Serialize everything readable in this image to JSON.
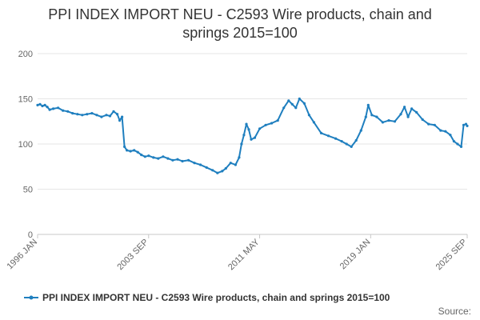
{
  "chart_data": {
    "type": "line",
    "title_lines": [
      "PPI INDEX IMPORT NEU - C2593 Wire products, chain and",
      "springs 2015=100"
    ],
    "xlabel": "",
    "ylabel": "",
    "x_range": [
      "1996-01",
      "2025-09"
    ],
    "x_tick_labels": [
      "1996 JAN",
      "2003 SEP",
      "2011 MAY",
      "2019 JAN",
      "2025 SEP"
    ],
    "ylim": [
      0,
      200
    ],
    "y_ticks": [
      0,
      50,
      100,
      150,
      200
    ],
    "grid": true,
    "legend_position": "bottom",
    "source_label": "Source:",
    "series": [
      {
        "name": "PPI INDEX IMPORT NEU - C2593 Wire products, chain and springs 2015=100",
        "color": "#1f7fbf",
        "points": [
          [
            "1996-01",
            143
          ],
          [
            "1996-03",
            144
          ],
          [
            "1996-05",
            142
          ],
          [
            "1996-07",
            143
          ],
          [
            "1996-09",
            141
          ],
          [
            "1996-11",
            138
          ],
          [
            "1997-02",
            139
          ],
          [
            "1997-06",
            140
          ],
          [
            "1997-10",
            137
          ],
          [
            "1998-02",
            136
          ],
          [
            "1998-06",
            134
          ],
          [
            "1998-10",
            133
          ],
          [
            "1999-02",
            132
          ],
          [
            "1999-06",
            133
          ],
          [
            "1999-10",
            134
          ],
          [
            "2000-02",
            132
          ],
          [
            "2000-06",
            130
          ],
          [
            "2000-10",
            132
          ],
          [
            "2001-01",
            131
          ],
          [
            "2001-04",
            136
          ],
          [
            "2001-07",
            133
          ],
          [
            "2001-09",
            126
          ],
          [
            "2001-11",
            130
          ],
          [
            "2002-01",
            97
          ],
          [
            "2002-03",
            93
          ],
          [
            "2002-06",
            92
          ],
          [
            "2002-09",
            93
          ],
          [
            "2002-12",
            91
          ],
          [
            "2003-03",
            88
          ],
          [
            "2003-06",
            86
          ],
          [
            "2003-09",
            87
          ],
          [
            "2004-01",
            85
          ],
          [
            "2004-05",
            84
          ],
          [
            "2004-09",
            86
          ],
          [
            "2005-01",
            84
          ],
          [
            "2005-05",
            82
          ],
          [
            "2005-09",
            83
          ],
          [
            "2006-01",
            81
          ],
          [
            "2006-06",
            82
          ],
          [
            "2006-11",
            79
          ],
          [
            "2007-04",
            77
          ],
          [
            "2007-09",
            74
          ],
          [
            "2008-02",
            71
          ],
          [
            "2008-06",
            68
          ],
          [
            "2008-10",
            70
          ],
          [
            "2009-01",
            73
          ],
          [
            "2009-05",
            79
          ],
          [
            "2009-09",
            77
          ],
          [
            "2009-12",
            85
          ],
          [
            "2010-02",
            100
          ],
          [
            "2010-04",
            110
          ],
          [
            "2010-06",
            122
          ],
          [
            "2010-08",
            116
          ],
          [
            "2010-10",
            105
          ],
          [
            "2011-01",
            107
          ],
          [
            "2011-05",
            117
          ],
          [
            "2011-10",
            121
          ],
          [
            "2012-03",
            123
          ],
          [
            "2012-08",
            126
          ],
          [
            "2013-01",
            140
          ],
          [
            "2013-05",
            148
          ],
          [
            "2013-08",
            144
          ],
          [
            "2013-11",
            140
          ],
          [
            "2014-02",
            150
          ],
          [
            "2014-06",
            145
          ],
          [
            "2014-10",
            132
          ],
          [
            "2015-02",
            124
          ],
          [
            "2015-08",
            112
          ],
          [
            "2016-02",
            109
          ],
          [
            "2016-08",
            106
          ],
          [
            "2017-01",
            103
          ],
          [
            "2017-05",
            100
          ],
          [
            "2017-09",
            97
          ],
          [
            "2018-01",
            104
          ],
          [
            "2018-05",
            115
          ],
          [
            "2018-09",
            130
          ],
          [
            "2018-11",
            143
          ],
          [
            "2019-02",
            132
          ],
          [
            "2019-06",
            130
          ],
          [
            "2019-11",
            124
          ],
          [
            "2020-04",
            126
          ],
          [
            "2020-09",
            125
          ],
          [
            "2021-02",
            133
          ],
          [
            "2021-05",
            141
          ],
          [
            "2021-08",
            130
          ],
          [
            "2021-11",
            139
          ],
          [
            "2022-03",
            135
          ],
          [
            "2022-08",
            127
          ],
          [
            "2023-01",
            122
          ],
          [
            "2023-06",
            121
          ],
          [
            "2023-11",
            115
          ],
          [
            "2024-03",
            114
          ],
          [
            "2024-07",
            110
          ],
          [
            "2024-10",
            103
          ],
          [
            "2025-01",
            100
          ],
          [
            "2025-04",
            97
          ],
          [
            "2025-06",
            121
          ],
          [
            "2025-08",
            122
          ],
          [
            "2025-09",
            120
          ]
        ]
      }
    ]
  }
}
